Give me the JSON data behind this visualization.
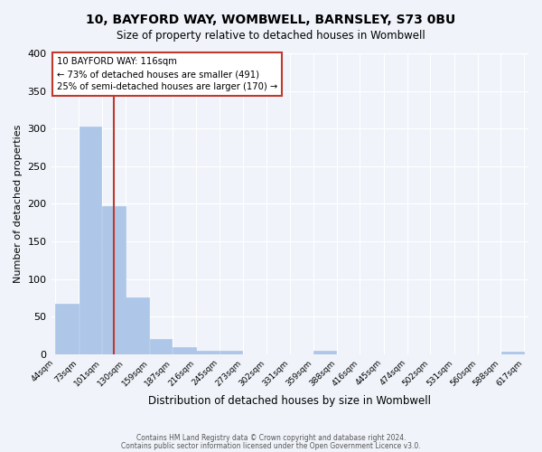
{
  "title": "10, BAYFORD WAY, WOMBWELL, BARNSLEY, S73 0BU",
  "subtitle": "Size of property relative to detached houses in Wombwell",
  "xlabel": "Distribution of detached houses by size in Wombwell",
  "ylabel": "Number of detached properties",
  "bar_color": "#aec6e8",
  "bar_edgecolor": "#aec6e8",
  "vline_x": 116,
  "vline_color": "#c0392b",
  "annotation_title": "10 BAYFORD WAY: 116sqm",
  "annotation_line1": "← 73% of detached houses are smaller (491)",
  "annotation_line2": "25% of semi-detached houses are larger (170) →",
  "annotation_box_color": "#c0392b",
  "bin_edges": [
    44,
    73,
    101,
    130,
    159,
    187,
    216,
    245,
    273,
    302,
    331,
    359,
    388,
    416,
    445,
    474,
    502,
    531,
    560,
    588,
    617
  ],
  "bin_labels": [
    "44sqm",
    "73sqm",
    "101sqm",
    "130sqm",
    "159sqm",
    "187sqm",
    "216sqm",
    "245sqm",
    "273sqm",
    "302sqm",
    "331sqm",
    "359sqm",
    "388sqm",
    "416sqm",
    "445sqm",
    "474sqm",
    "502sqm",
    "531sqm",
    "560sqm",
    "588sqm",
    "617sqm"
  ],
  "bar_heights": [
    67,
    303,
    197,
    76,
    20,
    9,
    4,
    4,
    0,
    0,
    0,
    5,
    0,
    0,
    0,
    0,
    0,
    0,
    0,
    3
  ],
  "ylim": [
    0,
    400
  ],
  "yticks": [
    0,
    50,
    100,
    150,
    200,
    250,
    300,
    350,
    400
  ],
  "background_color": "#f0f4fa",
  "grid_color": "#ffffff",
  "footer_line1": "Contains HM Land Registry data © Crown copyright and database right 2024.",
  "footer_line2": "Contains public sector information licensed under the Open Government Licence v3.0."
}
